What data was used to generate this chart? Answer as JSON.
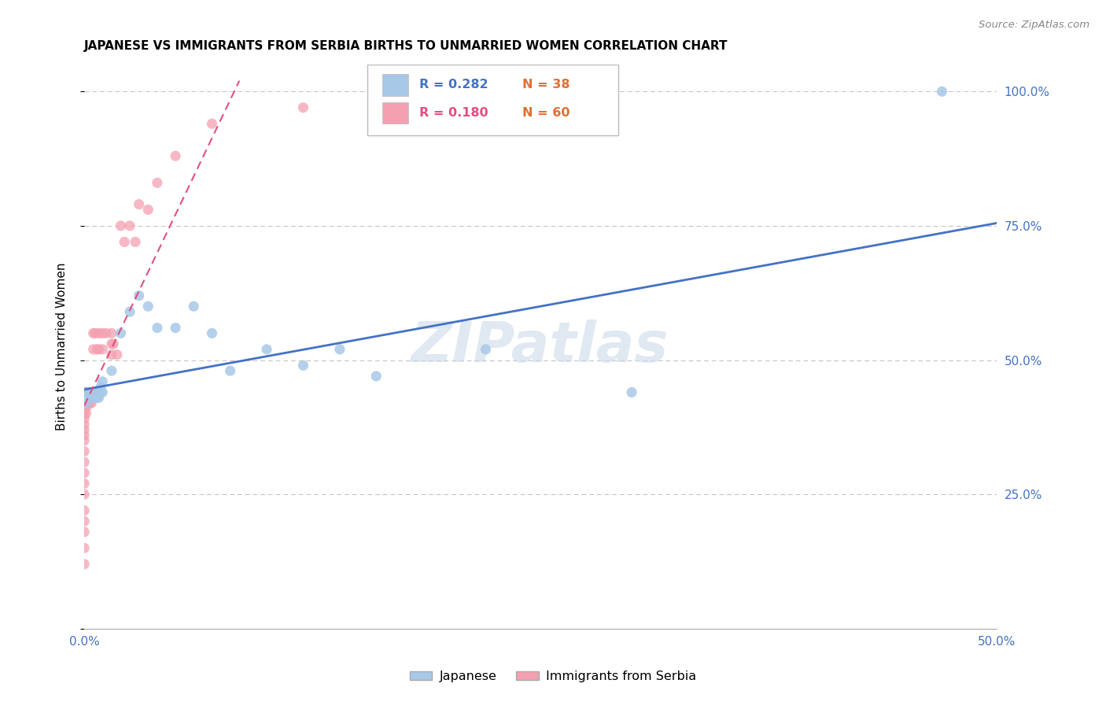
{
  "title": "JAPANESE VS IMMIGRANTS FROM SERBIA BIRTHS TO UNMARRIED WOMEN CORRELATION CHART",
  "source": "Source: ZipAtlas.com",
  "ylabel": "Births to Unmarried Women",
  "xlim": [
    0.0,
    0.5
  ],
  "ylim": [
    0.0,
    1.05
  ],
  "x_ticks": [
    0.0,
    0.1,
    0.2,
    0.3,
    0.4,
    0.5
  ],
  "x_tick_labels": [
    "0.0%",
    "",
    "",
    "",
    "",
    "50.0%"
  ],
  "y_ticks": [
    0.0,
    0.25,
    0.5,
    0.75,
    1.0
  ],
  "y_tick_labels_right": [
    "",
    "25.0%",
    "50.0%",
    "75.0%",
    "100.0%"
  ],
  "legend_r1": "R = 0.282",
  "legend_n1": "N = 38",
  "legend_r2": "R = 0.180",
  "legend_n2": "N = 60",
  "blue_color": "#a8c8e8",
  "pink_color": "#f4a0b0",
  "blue_line_color": "#4472c4",
  "pink_line_color": "#e05080",
  "grid_color": "#c0c0c0",
  "axis_color": "#4472c4",
  "watermark": "ZIPatlas",
  "japanese_x": [
    0.001,
    0.001,
    0.002,
    0.002,
    0.003,
    0.003,
    0.004,
    0.004,
    0.005,
    0.005,
    0.005,
    0.006,
    0.006,
    0.007,
    0.007,
    0.008,
    0.008,
    0.009,
    0.009,
    0.01,
    0.01,
    0.015,
    0.02,
    0.025,
    0.03,
    0.035,
    0.04,
    0.05,
    0.06,
    0.07,
    0.08,
    0.1,
    0.12,
    0.14,
    0.16,
    0.22,
    0.3,
    0.47
  ],
  "japanese_y": [
    0.42,
    0.43,
    0.44,
    0.43,
    0.44,
    0.43,
    0.44,
    0.43,
    0.44,
    0.43,
    0.44,
    0.43,
    0.44,
    0.44,
    0.43,
    0.44,
    0.43,
    0.45,
    0.44,
    0.46,
    0.44,
    0.48,
    0.55,
    0.59,
    0.62,
    0.6,
    0.56,
    0.56,
    0.6,
    0.55,
    0.48,
    0.52,
    0.49,
    0.52,
    0.47,
    0.52,
    0.44,
    1.0
  ],
  "serbia_x": [
    0.0,
    0.0,
    0.0,
    0.0,
    0.0,
    0.0,
    0.0,
    0.0,
    0.0,
    0.0,
    0.0,
    0.0,
    0.0,
    0.0,
    0.0,
    0.0,
    0.0,
    0.0,
    0.0,
    0.0,
    0.0,
    0.0,
    0.0,
    0.0,
    0.0,
    0.001,
    0.001,
    0.001,
    0.001,
    0.001,
    0.002,
    0.002,
    0.003,
    0.003,
    0.004,
    0.004,
    0.005,
    0.005,
    0.006,
    0.007,
    0.008,
    0.008,
    0.01,
    0.01,
    0.012,
    0.015,
    0.015,
    0.015,
    0.016,
    0.018,
    0.02,
    0.022,
    0.025,
    0.028,
    0.03,
    0.035,
    0.04,
    0.05,
    0.07,
    0.12
  ],
  "serbia_y": [
    0.44,
    0.44,
    0.44,
    0.44,
    0.44,
    0.43,
    0.43,
    0.42,
    0.41,
    0.4,
    0.39,
    0.38,
    0.37,
    0.36,
    0.35,
    0.33,
    0.31,
    0.29,
    0.27,
    0.25,
    0.22,
    0.2,
    0.18,
    0.15,
    0.12,
    0.44,
    0.43,
    0.42,
    0.41,
    0.4,
    0.44,
    0.42,
    0.44,
    0.42,
    0.44,
    0.42,
    0.55,
    0.52,
    0.55,
    0.52,
    0.55,
    0.52,
    0.55,
    0.52,
    0.55,
    0.55,
    0.53,
    0.51,
    0.53,
    0.51,
    0.75,
    0.72,
    0.75,
    0.72,
    0.79,
    0.78,
    0.83,
    0.88,
    0.94,
    0.97
  ],
  "blue_trend_x": [
    0.0,
    0.5
  ],
  "blue_trend_y": [
    0.445,
    0.755
  ],
  "pink_trend_x": [
    0.0,
    0.085
  ],
  "pink_trend_y": [
    0.415,
    1.02
  ]
}
